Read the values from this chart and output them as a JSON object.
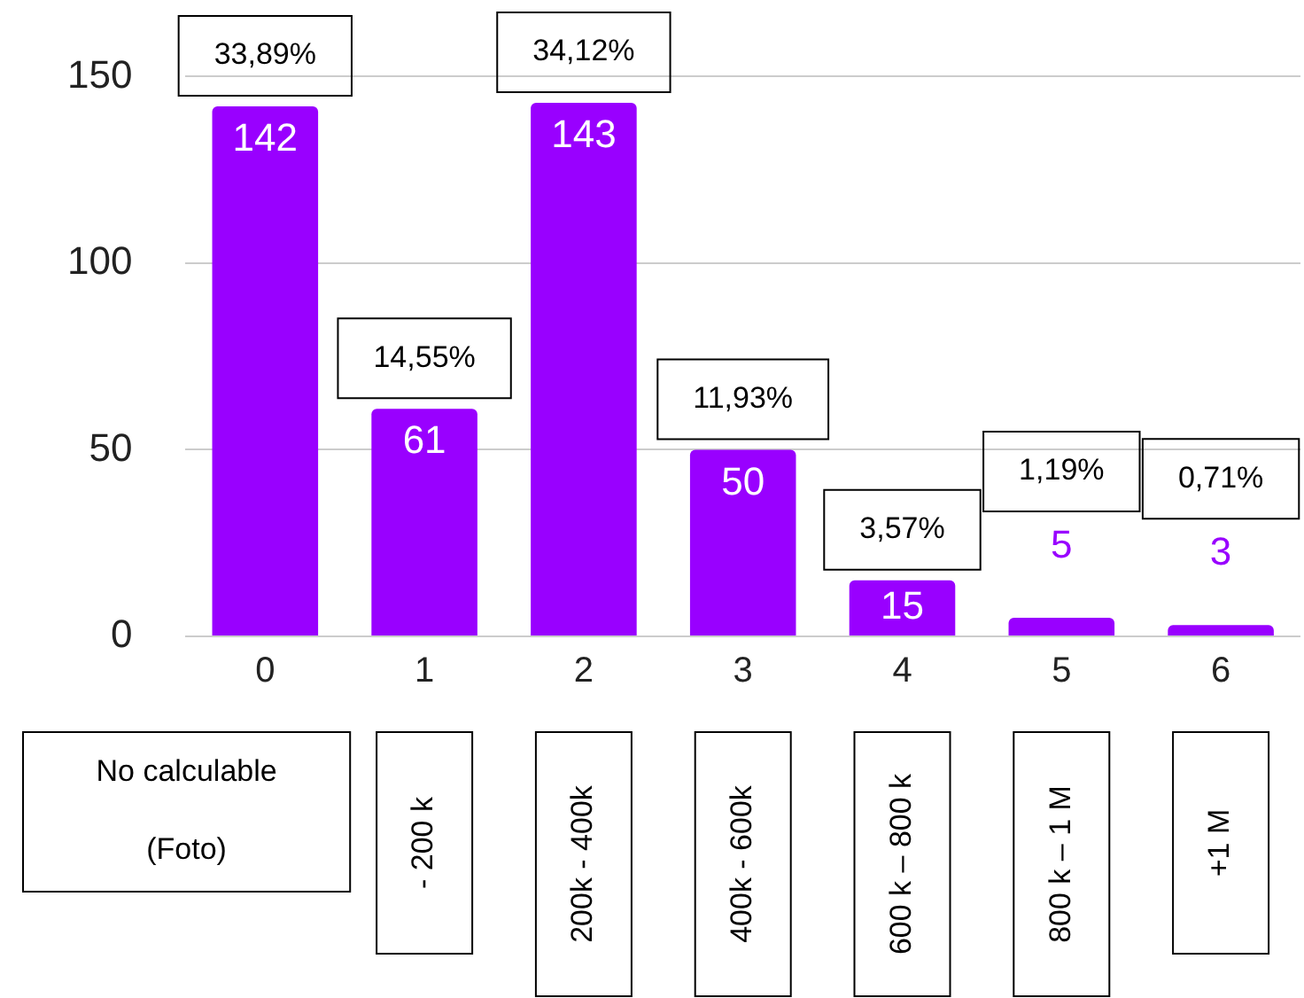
{
  "chart_data": {
    "type": "bar",
    "categories": [
      "0",
      "1",
      "2",
      "3",
      "4",
      "5",
      "6"
    ],
    "values": [
      142,
      61,
      143,
      50,
      15,
      5,
      3
    ],
    "color": "#9900ff",
    "ylim": [
      0,
      150
    ],
    "yticks": [
      0,
      50,
      100,
      150
    ],
    "grid": "y",
    "data_labels": true,
    "annotations": [
      "33,89%",
      "14,55%",
      "34,12%",
      "11,93%",
      "3,57%",
      "1,19%",
      "0,71%",
      "No calculable (Foto)",
      "- 200 k",
      "200k - 400k",
      "400k - 600k",
      "600 k – 800 k",
      "800 k – 1 M",
      "+1 M"
    ]
  }
}
